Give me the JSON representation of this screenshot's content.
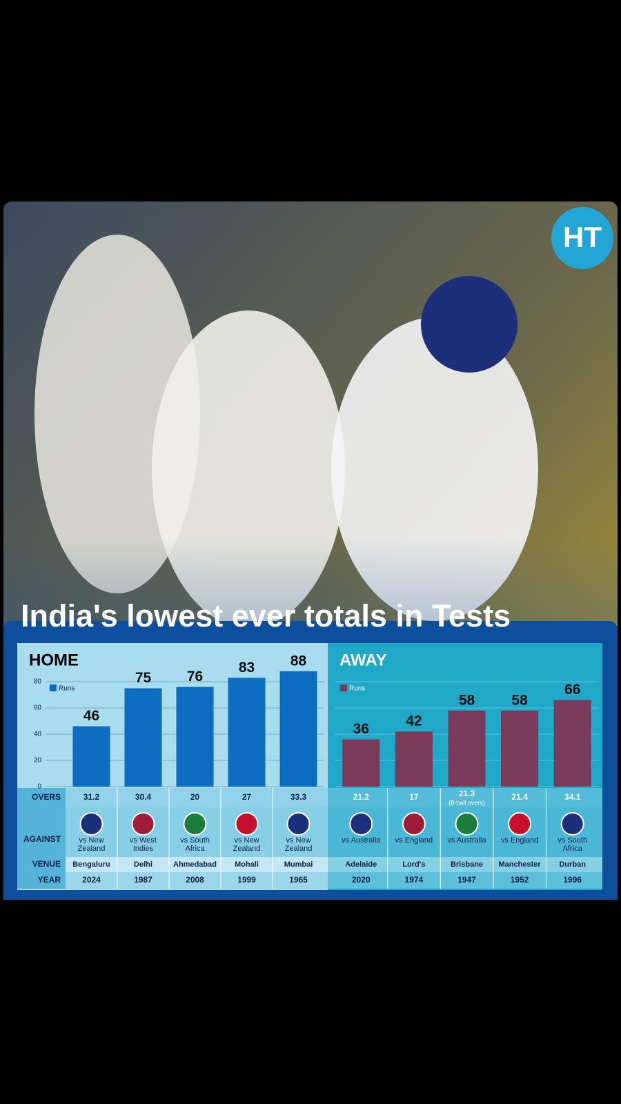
{
  "logo": "HT",
  "headline": "India's lowest ever totals in Tests",
  "table": {
    "row_labels": [
      "OVERS",
      "AGAINST",
      "VENUE",
      "YEAR"
    ]
  },
  "chart_data": [
    {
      "type": "bar",
      "title": "HOME",
      "series": [
        {
          "name": "Runs",
          "color": "#0b6cc0",
          "values": [
            46,
            75,
            76,
            83,
            88
          ]
        }
      ],
      "ylim": [
        0,
        90
      ],
      "yticks": [
        0,
        20,
        40,
        60,
        80
      ],
      "show_tick_labels": true,
      "grid": true,
      "overs": [
        "31.2",
        "30.4",
        "20",
        "27",
        "33.3"
      ],
      "opponents": [
        "vs New Zealand",
        "vs West Indies",
        "vs South Africa",
        "vs New Zealand",
        "vs New Zealand"
      ],
      "venues": [
        "Bengaluru",
        "Delhi",
        "Ahmedabad",
        "Mohali",
        "Mumbai"
      ],
      "years": [
        "2024",
        "1987",
        "2008",
        "1999",
        "1965"
      ]
    },
    {
      "type": "bar",
      "title": "AWAY",
      "series": [
        {
          "name": "Runs",
          "color": "#7a3a5b",
          "values": [
            36,
            42,
            58,
            58,
            66
          ]
        }
      ],
      "ylim": [
        0,
        90
      ],
      "yticks": [
        0,
        20,
        40,
        60,
        80
      ],
      "show_tick_labels": false,
      "grid": true,
      "overs": [
        "21.2",
        "17",
        "21.3",
        "21.4",
        "34.1"
      ],
      "overs_notes": [
        null,
        null,
        "(8-ball overs)",
        null,
        null
      ],
      "opponents": [
        "vs Australia",
        "vs England",
        "vs Australia",
        "vs England",
        "vs South Africa"
      ],
      "venues": [
        "Adelaide",
        "Lord's",
        "Brisbane",
        "Manchester",
        "Durban"
      ],
      "years": [
        "2020",
        "1974",
        "1947",
        "1952",
        "1996"
      ]
    }
  ]
}
